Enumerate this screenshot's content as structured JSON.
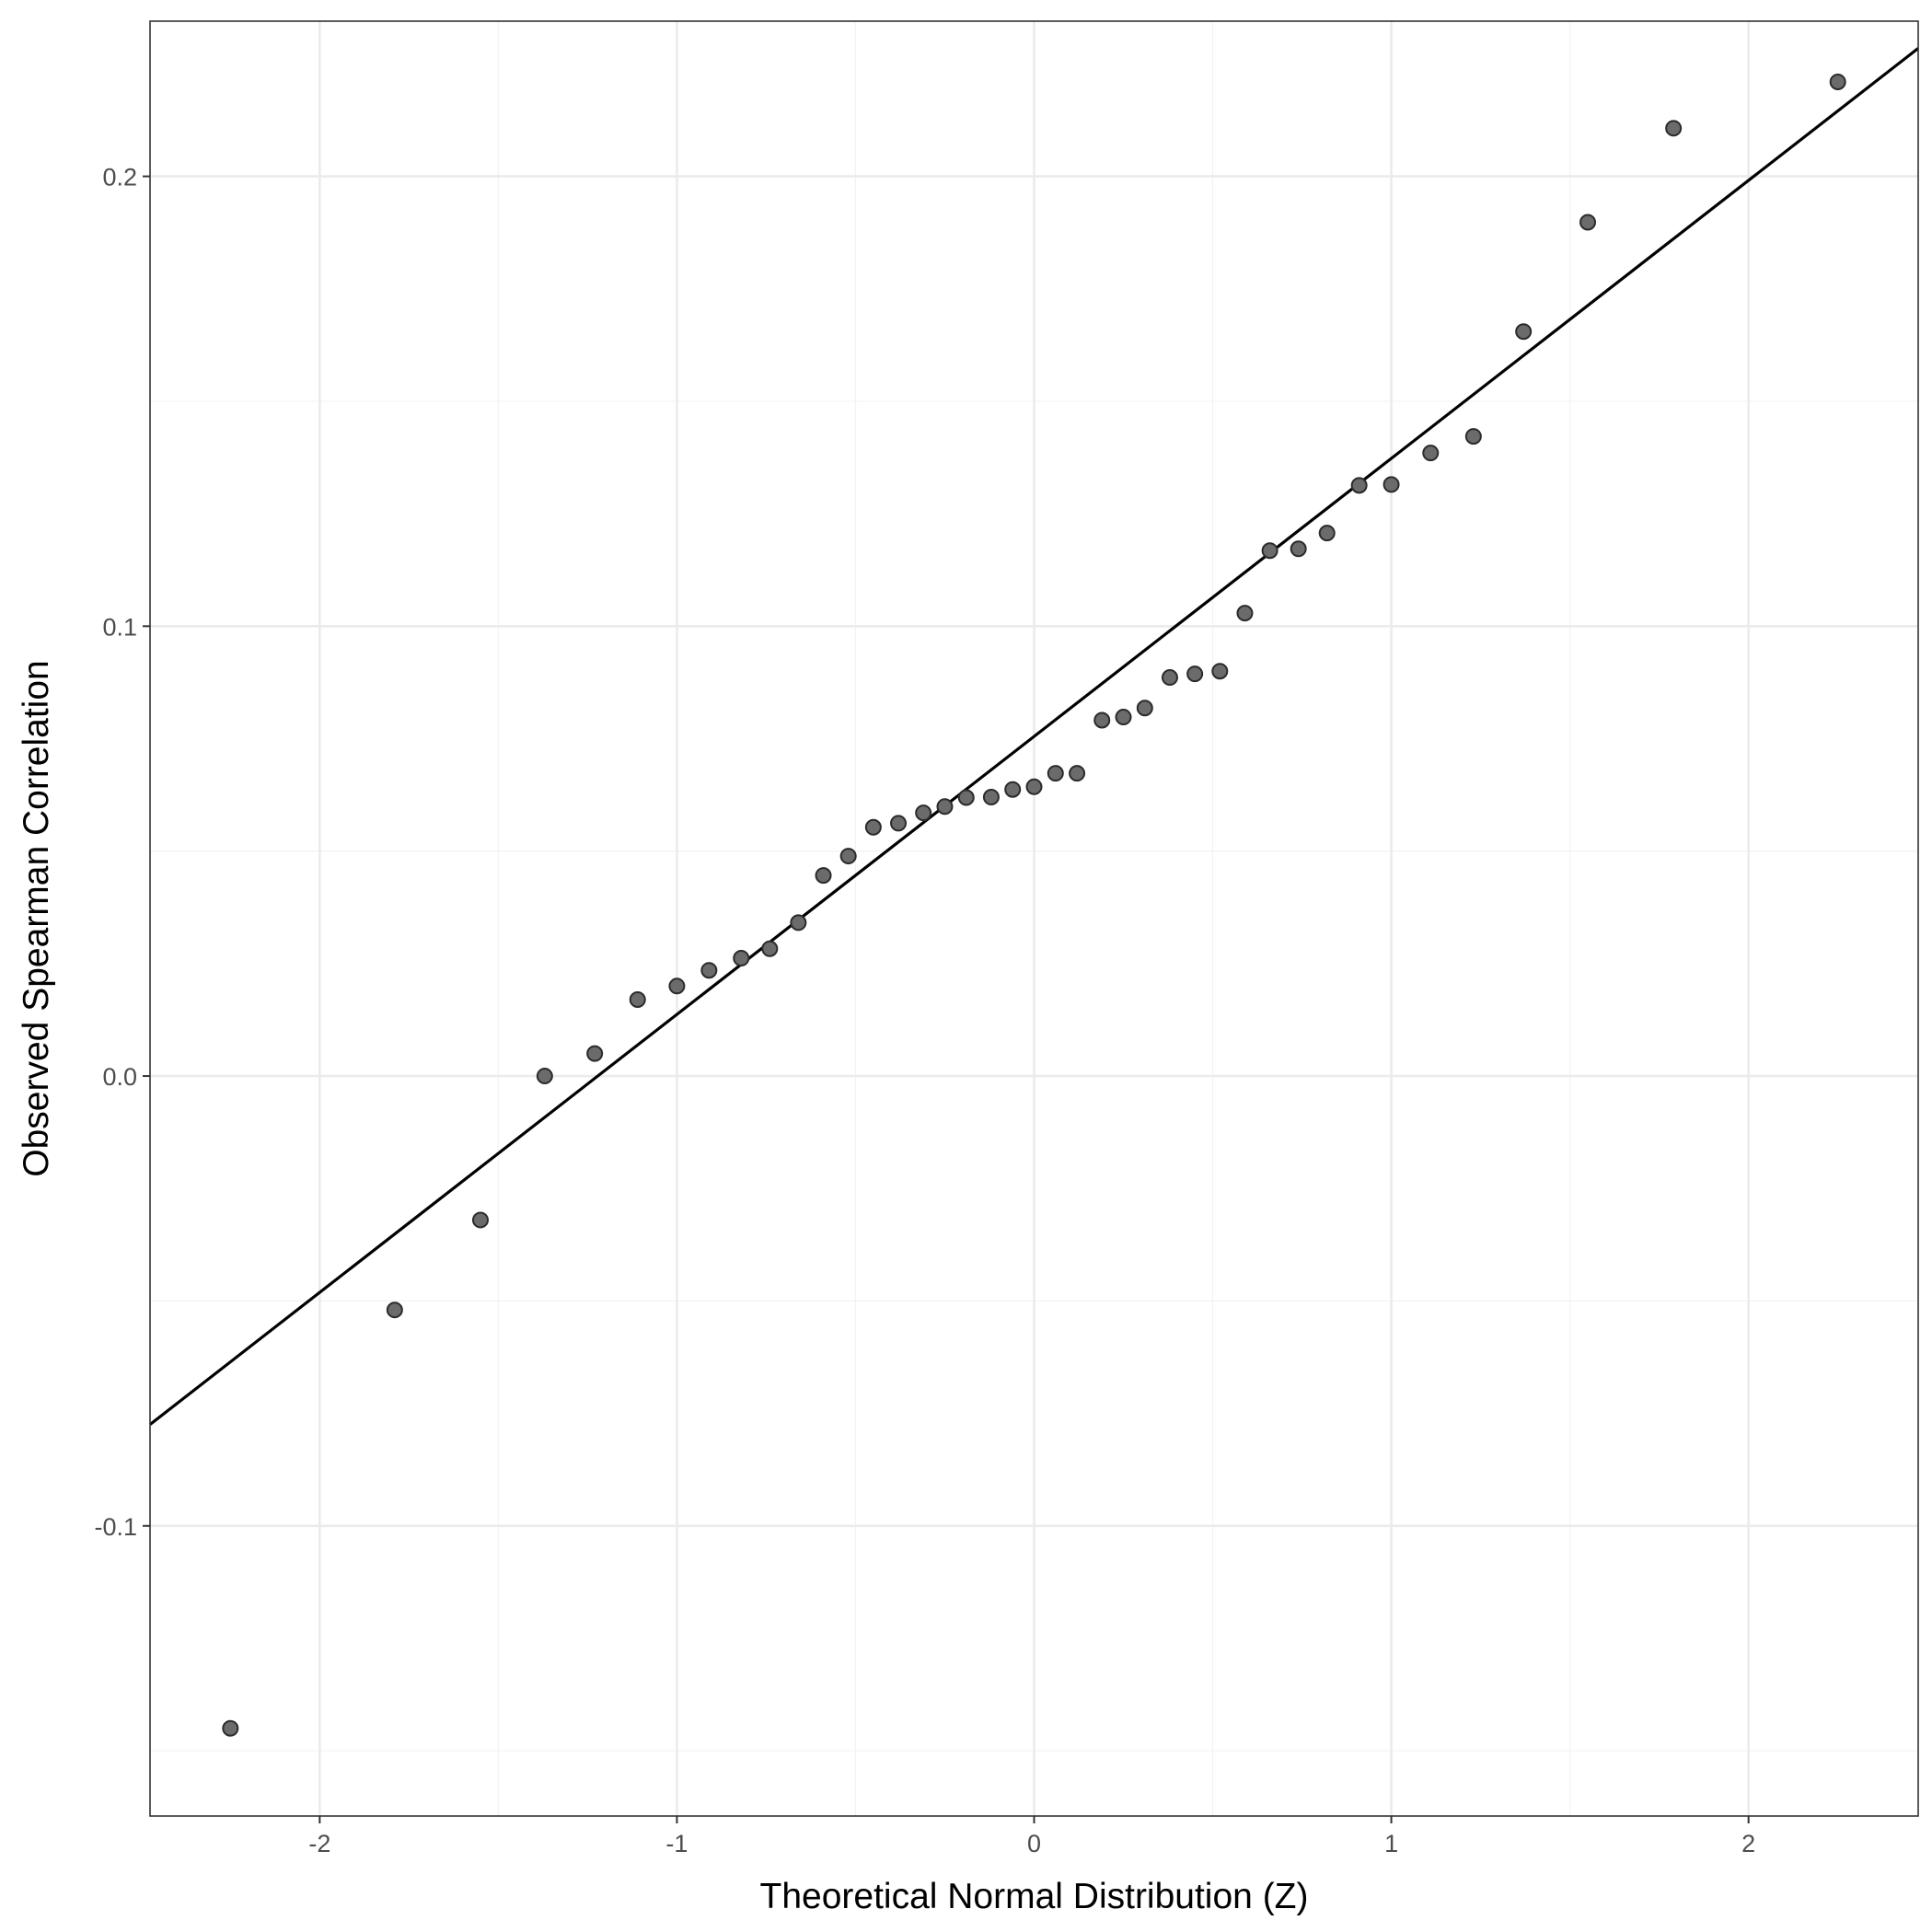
{
  "chart_data": {
    "type": "scatter",
    "title": "",
    "xlabel": "Theoretical Normal Distribution (Z)",
    "ylabel": "Observed Spearman Correlation",
    "xlim": [
      -2.475,
      2.475
    ],
    "ylim": [
      -0.1645,
      0.2345
    ],
    "x_ticks": [
      -2,
      -1,
      0,
      1,
      2
    ],
    "x_tick_labels": [
      "-2",
      "-1",
      "0",
      "1",
      "2"
    ],
    "y_ticks": [
      -0.1,
      0.0,
      0.1,
      0.2
    ],
    "y_tick_labels": [
      "-0.1",
      "0.0",
      "0.1",
      "0.2"
    ],
    "grid": true,
    "points": [
      {
        "x": -2.25,
        "y": -0.145
      },
      {
        "x": -1.79,
        "y": -0.052
      },
      {
        "x": -1.55,
        "y": -0.032
      },
      {
        "x": -1.37,
        "y": 0.0
      },
      {
        "x": -1.23,
        "y": 0.005
      },
      {
        "x": -1.11,
        "y": 0.017
      },
      {
        "x": -1.0,
        "y": 0.02
      },
      {
        "x": -0.91,
        "y": 0.0235
      },
      {
        "x": -0.82,
        "y": 0.0262
      },
      {
        "x": -0.74,
        "y": 0.0283
      },
      {
        "x": -0.66,
        "y": 0.0341
      },
      {
        "x": -0.59,
        "y": 0.0446
      },
      {
        "x": -0.52,
        "y": 0.0489
      },
      {
        "x": -0.45,
        "y": 0.0553
      },
      {
        "x": -0.38,
        "y": 0.0562
      },
      {
        "x": -0.31,
        "y": 0.0585
      },
      {
        "x": -0.25,
        "y": 0.0599
      },
      {
        "x": -0.19,
        "y": 0.0619
      },
      {
        "x": -0.12,
        "y": 0.062
      },
      {
        "x": -0.06,
        "y": 0.0637
      },
      {
        "x": 0.0,
        "y": 0.0643
      },
      {
        "x": 0.06,
        "y": 0.0673
      },
      {
        "x": 0.12,
        "y": 0.0673
      },
      {
        "x": 0.19,
        "y": 0.0791
      },
      {
        "x": 0.25,
        "y": 0.0798
      },
      {
        "x": 0.31,
        "y": 0.0818
      },
      {
        "x": 0.38,
        "y": 0.0886
      },
      {
        "x": 0.45,
        "y": 0.0894
      },
      {
        "x": 0.52,
        "y": 0.09
      },
      {
        "x": 0.59,
        "y": 0.1029
      },
      {
        "x": 0.66,
        "y": 0.1168
      },
      {
        "x": 0.74,
        "y": 0.1172
      },
      {
        "x": 0.82,
        "y": 0.1207
      },
      {
        "x": 0.91,
        "y": 0.1313
      },
      {
        "x": 1.0,
        "y": 0.1315
      },
      {
        "x": 1.11,
        "y": 0.1385
      },
      {
        "x": 1.23,
        "y": 0.1422
      },
      {
        "x": 1.37,
        "y": 0.1655
      },
      {
        "x": 1.55,
        "y": 0.1898
      },
      {
        "x": 1.79,
        "y": 0.2107
      },
      {
        "x": 2.25,
        "y": 0.221
      }
    ],
    "reference_line": {
      "intercept": 0.0755,
      "slope": 0.0618
    },
    "colors": {
      "point_fill": "#6b6b6b",
      "point_stroke": "#2b2b2b",
      "line": "#000000",
      "grid_major": "#ebebeb",
      "grid_minor": "#f3f3f3",
      "panel_border": "#333333"
    }
  }
}
